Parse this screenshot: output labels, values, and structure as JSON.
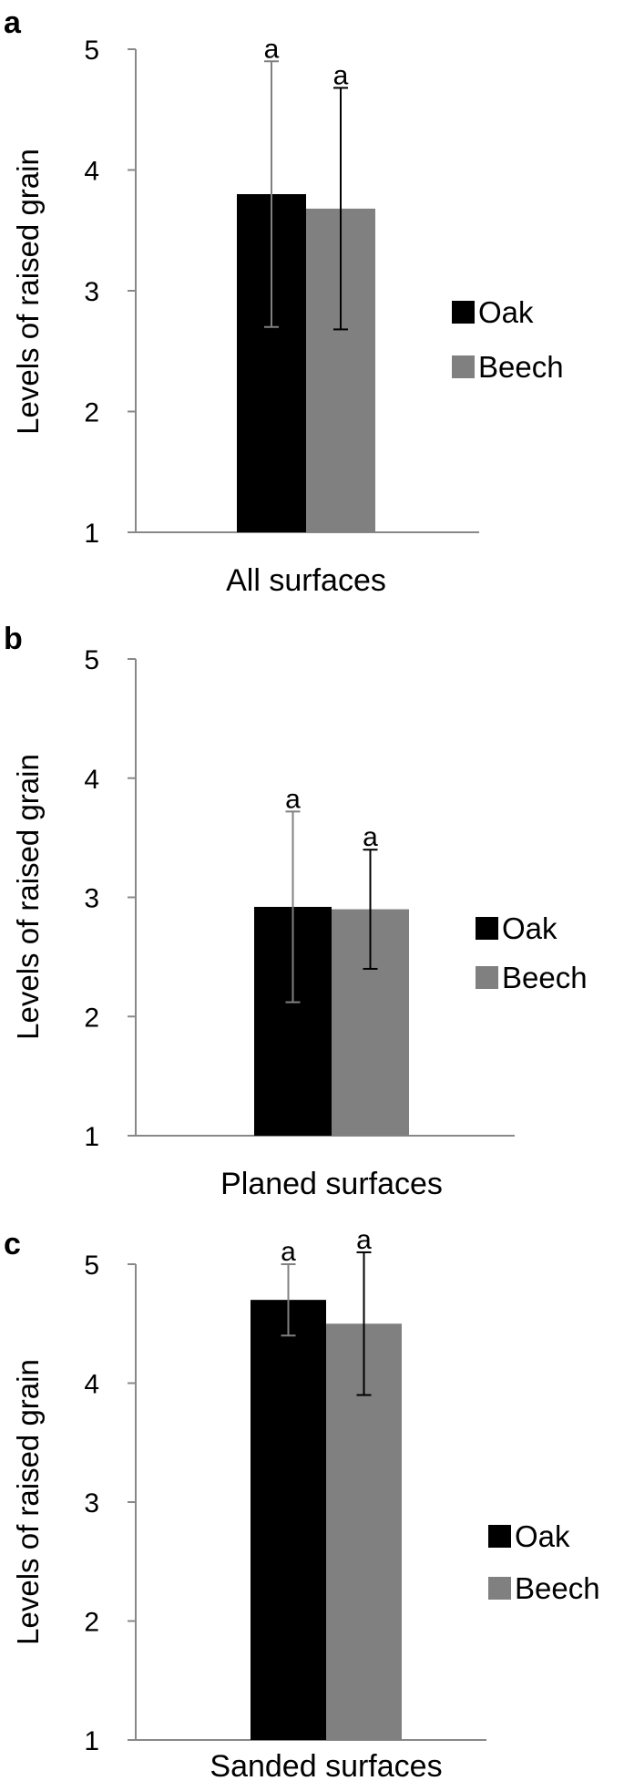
{
  "chart_data": [
    {
      "panel": "a",
      "type": "bar",
      "categories": [
        "All surfaces"
      ],
      "ylabel": "Levels of raised grain",
      "ylim": [
        1,
        5
      ],
      "yticks": [
        "1",
        "2",
        "3",
        "4",
        "5"
      ],
      "legend": "right",
      "series": [
        {
          "name": "Oak",
          "color": "#000000",
          "error_color": "#808080",
          "values": [
            3.8
          ],
          "error_low": [
            2.7
          ],
          "error_high": [
            4.9
          ],
          "sig": [
            "a"
          ]
        },
        {
          "name": "Beech",
          "color": "#808080",
          "error_color": "#000000",
          "values": [
            3.68
          ],
          "error_low": [
            2.68
          ],
          "error_high": [
            4.68
          ],
          "sig": [
            "a"
          ]
        }
      ]
    },
    {
      "panel": "b",
      "type": "bar",
      "categories": [
        "Planed surfaces"
      ],
      "ylabel": "Levels of raised grain",
      "ylim": [
        1,
        5
      ],
      "yticks": [
        "1",
        "2",
        "3",
        "4",
        "5"
      ],
      "legend": "right",
      "series": [
        {
          "name": "Oak",
          "color": "#000000",
          "error_color": "#808080",
          "values": [
            2.92
          ],
          "error_low": [
            2.12
          ],
          "error_high": [
            3.72
          ],
          "sig": [
            "a"
          ]
        },
        {
          "name": "Beech",
          "color": "#808080",
          "error_color": "#000000",
          "values": [
            2.9
          ],
          "error_low": [
            2.4
          ],
          "error_high": [
            3.4
          ],
          "sig": [
            "a"
          ]
        }
      ]
    },
    {
      "panel": "c",
      "type": "bar",
      "categories": [
        "Sanded surfaces"
      ],
      "ylabel": "Levels of raised grain",
      "ylim": [
        1,
        5
      ],
      "yticks": [
        "1",
        "2",
        "3",
        "4",
        "5"
      ],
      "legend": "right",
      "series": [
        {
          "name": "Oak",
          "color": "#000000",
          "error_color": "#808080",
          "values": [
            4.7
          ],
          "error_low": [
            4.4
          ],
          "error_high": [
            5.0
          ],
          "sig": [
            "a"
          ]
        },
        {
          "name": "Beech",
          "color": "#808080",
          "error_color": "#000000",
          "values": [
            4.5
          ],
          "error_low": [
            3.9
          ],
          "error_high": [
            5.1
          ],
          "sig": [
            "a"
          ]
        }
      ]
    }
  ]
}
